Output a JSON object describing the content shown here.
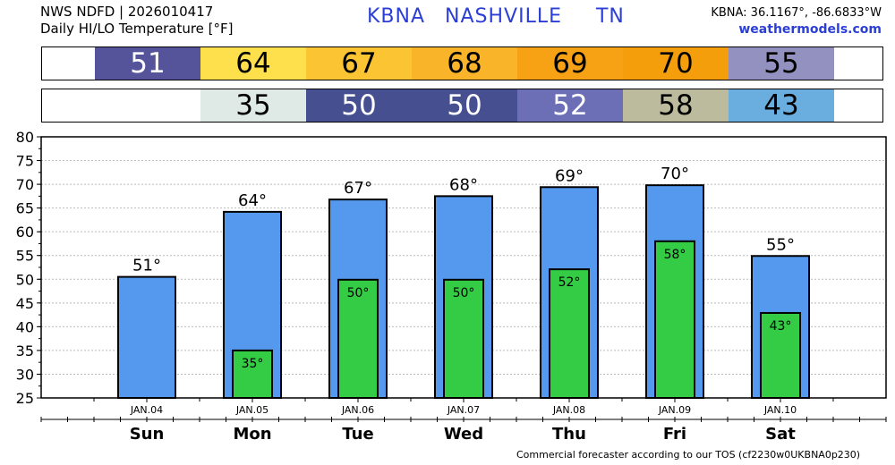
{
  "header": {
    "line1": "NWS NDFD | 2026010417",
    "line2": "Daily HI/LO Temperature [°F]",
    "station": "KBNA",
    "city": "NASHVILLE",
    "state": "TN",
    "coords": "KBNA: 36.1167°, -86.6833°W",
    "site": "weathermodels.com"
  },
  "footer": "Commercial forecaster according to our TOS (cf2230w0UKBNA0p230)",
  "strips": {
    "hi": [
      {
        "day_index": 0,
        "value": "51",
        "bg": "#55549a",
        "fg": "#ffffff"
      },
      {
        "day_index": 1,
        "value": "64",
        "bg": "#fde04c",
        "fg": "#000000"
      },
      {
        "day_index": 2,
        "value": "67",
        "bg": "#fbc433",
        "fg": "#000000"
      },
      {
        "day_index": 3,
        "value": "68",
        "bg": "#f9b42a",
        "fg": "#000000"
      },
      {
        "day_index": 4,
        "value": "69",
        "bg": "#f7a115",
        "fg": "#000000"
      },
      {
        "day_index": 5,
        "value": "70",
        "bg": "#f59e0b",
        "fg": "#000000"
      },
      {
        "day_index": 6,
        "value": "55",
        "bg": "#9391c0",
        "fg": "#000000"
      }
    ],
    "lo": [
      {
        "day_index": 1,
        "value": "35",
        "bg": "#dfe9e6",
        "fg": "#000000"
      },
      {
        "day_index": 2,
        "value": "50",
        "bg": "#464f8f",
        "fg": "#ffffff"
      },
      {
        "day_index": 3,
        "value": "50",
        "bg": "#464f8f",
        "fg": "#ffffff"
      },
      {
        "day_index": 4,
        "value": "52",
        "bg": "#6c6fb6",
        "fg": "#ffffff"
      },
      {
        "day_index": 5,
        "value": "58",
        "bg": "#bdbb9e",
        "fg": "#000000"
      },
      {
        "day_index": 6,
        "value": "43",
        "bg": "#6aaee0",
        "fg": "#000000"
      }
    ]
  },
  "chart_data": {
    "type": "bar",
    "categories": [
      "JAN.04",
      "JAN.05",
      "JAN.06",
      "JAN.07",
      "JAN.08",
      "JAN.09",
      "JAN.10"
    ],
    "weekdays": [
      "Sun",
      "Mon",
      "Tue",
      "Wed",
      "Thu",
      "Fri",
      "Sat"
    ],
    "series": [
      {
        "values": [
          51,
          64,
          67,
          68,
          69,
          70,
          55
        ],
        "color": "#5599ee",
        "labels": [
          "51°",
          "64°",
          "67°",
          "68°",
          "69°",
          "70°",
          "55°"
        ]
      },
      {
        "values": [
          null,
          35,
          50,
          50,
          52,
          58,
          43
        ],
        "color": "#33cc44",
        "labels": [
          "",
          "35°",
          "50°",
          "50°",
          "52°",
          "58°",
          "43°"
        ]
      }
    ],
    "bar_values_precise": [
      50.5,
      64.2,
      66.8,
      67.5,
      69.4,
      69.8,
      54.9
    ],
    "low_values_precise": [
      null,
      35,
      49.9,
      49.9,
      52.1,
      58.0,
      42.9
    ],
    "yticks": [
      25,
      30,
      35,
      40,
      45,
      50,
      55,
      60,
      65,
      70,
      75,
      80
    ],
    "ylim": [
      25,
      80
    ],
    "grid": true,
    "title": "",
    "xlabel": "",
    "ylabel": ""
  }
}
